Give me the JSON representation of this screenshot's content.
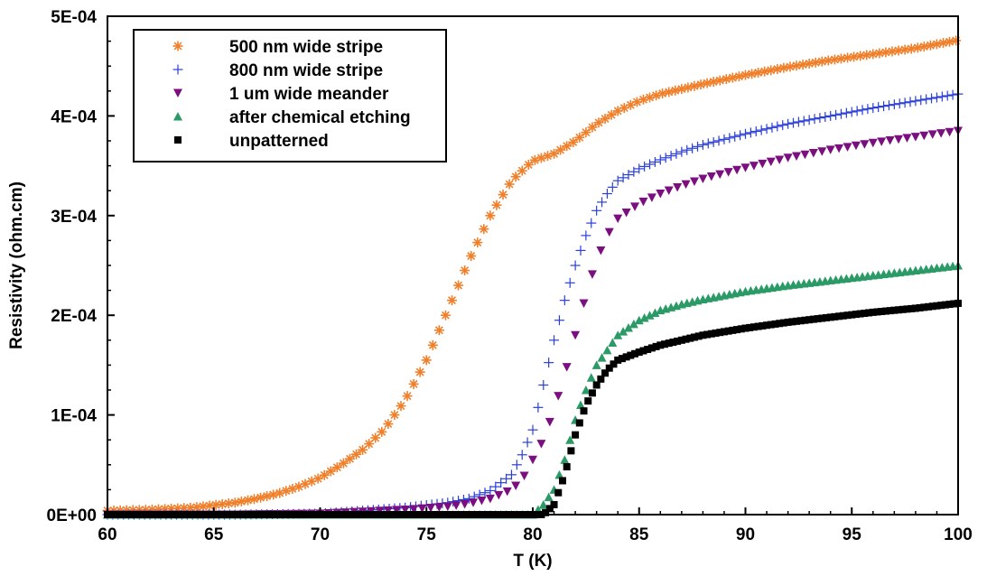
{
  "chart_data": {
    "type": "scatter",
    "title": "",
    "xlabel": "T (K)",
    "ylabel": "Resistivity (ohm.cm)",
    "xlim": [
      60,
      100
    ],
    "ylim": [
      0,
      0.0005
    ],
    "xticks": [
      60,
      65,
      70,
      75,
      80,
      85,
      90,
      95,
      100
    ],
    "xtick_labels": [
      "60",
      "65",
      "70",
      "75",
      "80",
      "85",
      "90",
      "95",
      "100"
    ],
    "yticks": [
      0,
      0.0001,
      0.0002,
      0.0003,
      0.0004,
      0.0005
    ],
    "ytick_labels": [
      "0E+00",
      "1E-04",
      "2E-04",
      "3E-04",
      "4E-04",
      "5E-04"
    ],
    "grid": false,
    "legend_position": "top-left",
    "series": [
      {
        "name": "500 nm wide stripe",
        "marker": "asterisk",
        "color": "#f07f2a",
        "step": 0.3,
        "points": [
          [
            60,
            4e-06
          ],
          [
            62,
            5e-06
          ],
          [
            64,
            7e-06
          ],
          [
            66,
            1.2e-05
          ],
          [
            67,
            1.6e-05
          ],
          [
            68,
            2.1e-05
          ],
          [
            69,
            2.8e-05
          ],
          [
            70,
            3.7e-05
          ],
          [
            71,
            5e-05
          ],
          [
            72,
            6.5e-05
          ],
          [
            73,
            8.5e-05
          ],
          [
            74,
            0.000115
          ],
          [
            75,
            0.000155
          ],
          [
            76,
            0.000205
          ],
          [
            77,
            0.000255
          ],
          [
            78,
            0.0003
          ],
          [
            79,
            0.000335
          ],
          [
            80,
            0.000355
          ],
          [
            81,
            0.000362
          ],
          [
            82,
            0.000375
          ],
          [
            83,
            0.000392
          ],
          [
            84,
            0.000405
          ],
          [
            85,
            0.000415
          ],
          [
            86,
            0.000422
          ],
          [
            88,
            0.000432
          ],
          [
            90,
            0.000441
          ],
          [
            92,
            0.000449
          ],
          [
            94,
            0.000456
          ],
          [
            96,
            0.000462
          ],
          [
            98,
            0.000468
          ],
          [
            100,
            0.000476
          ]
        ]
      },
      {
        "name": "800 nm wide stripe",
        "marker": "plus",
        "color": "#2a3fd6",
        "step": 0.25,
        "points": [
          [
            60,
            0.0
          ],
          [
            66,
            0.0
          ],
          [
            70,
            1e-06
          ],
          [
            72,
            4e-06
          ],
          [
            74,
            7e-06
          ],
          [
            76,
            1.2e-05
          ],
          [
            77,
            1.6e-05
          ],
          [
            78,
            2.4e-05
          ],
          [
            79,
            4e-05
          ],
          [
            79.5,
            6e-05
          ],
          [
            80,
            8.5e-05
          ],
          [
            80.5,
            0.00013
          ],
          [
            81,
            0.000175
          ],
          [
            81.5,
            0.000215
          ],
          [
            82,
            0.00025
          ],
          [
            82.5,
            0.00028
          ],
          [
            83,
            0.000305
          ],
          [
            83.5,
            0.000322
          ],
          [
            84,
            0.000335
          ],
          [
            85,
            0.000347
          ],
          [
            86,
            0.000356
          ],
          [
            87,
            0.000364
          ],
          [
            88,
            0.000371
          ],
          [
            90,
            0.000382
          ],
          [
            92,
            0.000392
          ],
          [
            94,
            0.0004
          ],
          [
            96,
            0.000408
          ],
          [
            98,
            0.000415
          ],
          [
            100,
            0.000422
          ]
        ]
      },
      {
        "name": "1 um wide meander",
        "marker": "triangle-down",
        "color": "#7b0f80",
        "step": 0.4,
        "points": [
          [
            60,
            0.0
          ],
          [
            66,
            0.0
          ],
          [
            70,
            1e-06
          ],
          [
            72,
            3e-06
          ],
          [
            74,
            5e-06
          ],
          [
            76,
            8e-06
          ],
          [
            77,
            1.1e-05
          ],
          [
            78,
            1.6e-05
          ],
          [
            79,
            2.5e-05
          ],
          [
            79.5,
            3.5e-05
          ],
          [
            80,
            5.5e-05
          ],
          [
            80.5,
            7.5e-05
          ],
          [
            81,
            0.000105
          ],
          [
            81.5,
            0.00014
          ],
          [
            82,
            0.00018
          ],
          [
            82.5,
            0.00022
          ],
          [
            83,
            0.000255
          ],
          [
            83.5,
            0.00028
          ],
          [
            84,
            0.000297
          ],
          [
            85,
            0.000312
          ],
          [
            86,
            0.000322
          ],
          [
            87,
            0.00033
          ],
          [
            88,
            0.000337
          ],
          [
            90,
            0.000348
          ],
          [
            92,
            0.000358
          ],
          [
            94,
            0.000366
          ],
          [
            96,
            0.000373
          ],
          [
            98,
            0.000379
          ],
          [
            100,
            0.000385
          ]
        ]
      },
      {
        "name": "after chemical etching",
        "marker": "triangle-up",
        "color": "#2b9a67",
        "step": 0.25,
        "points": [
          [
            60,
            0.0
          ],
          [
            78,
            0.0
          ],
          [
            80,
            0.0
          ],
          [
            80.5,
            1e-05
          ],
          [
            81,
            2.5e-05
          ],
          [
            81.5,
            5.5e-05
          ],
          [
            82,
            9.5e-05
          ],
          [
            82.5,
            0.000125
          ],
          [
            83,
            0.00015
          ],
          [
            83.5,
            0.000165
          ],
          [
            84,
            0.00018
          ],
          [
            85,
            0.000195
          ],
          [
            86,
            0.000205
          ],
          [
            87,
            0.000211
          ],
          [
            88,
            0.000216
          ],
          [
            90,
            0.000224
          ],
          [
            92,
            0.00023
          ],
          [
            94,
            0.000235
          ],
          [
            96,
            0.00024
          ],
          [
            98,
            0.000245
          ],
          [
            100,
            0.00025
          ]
        ]
      },
      {
        "name": "unpatterned",
        "marker": "square",
        "color": "#000000",
        "step": 0.2,
        "points": [
          [
            60,
            0.0
          ],
          [
            78,
            0.0
          ],
          [
            80.5,
            0.0
          ],
          [
            81,
            1e-05
          ],
          [
            81.5,
            4e-05
          ],
          [
            82,
            8e-05
          ],
          [
            82.5,
            0.00011
          ],
          [
            83,
            0.00013
          ],
          [
            83.5,
            0.000145
          ],
          [
            84,
            0.000155
          ],
          [
            85,
            0.000163
          ],
          [
            86,
            0.00017
          ],
          [
            87,
            0.000175
          ],
          [
            88,
            0.00018
          ],
          [
            90,
            0.000187
          ],
          [
            92,
            0.000193
          ],
          [
            94,
            0.000198
          ],
          [
            96,
            0.000203
          ],
          [
            98,
            0.000207
          ],
          [
            100,
            0.000212
          ]
        ]
      }
    ]
  }
}
